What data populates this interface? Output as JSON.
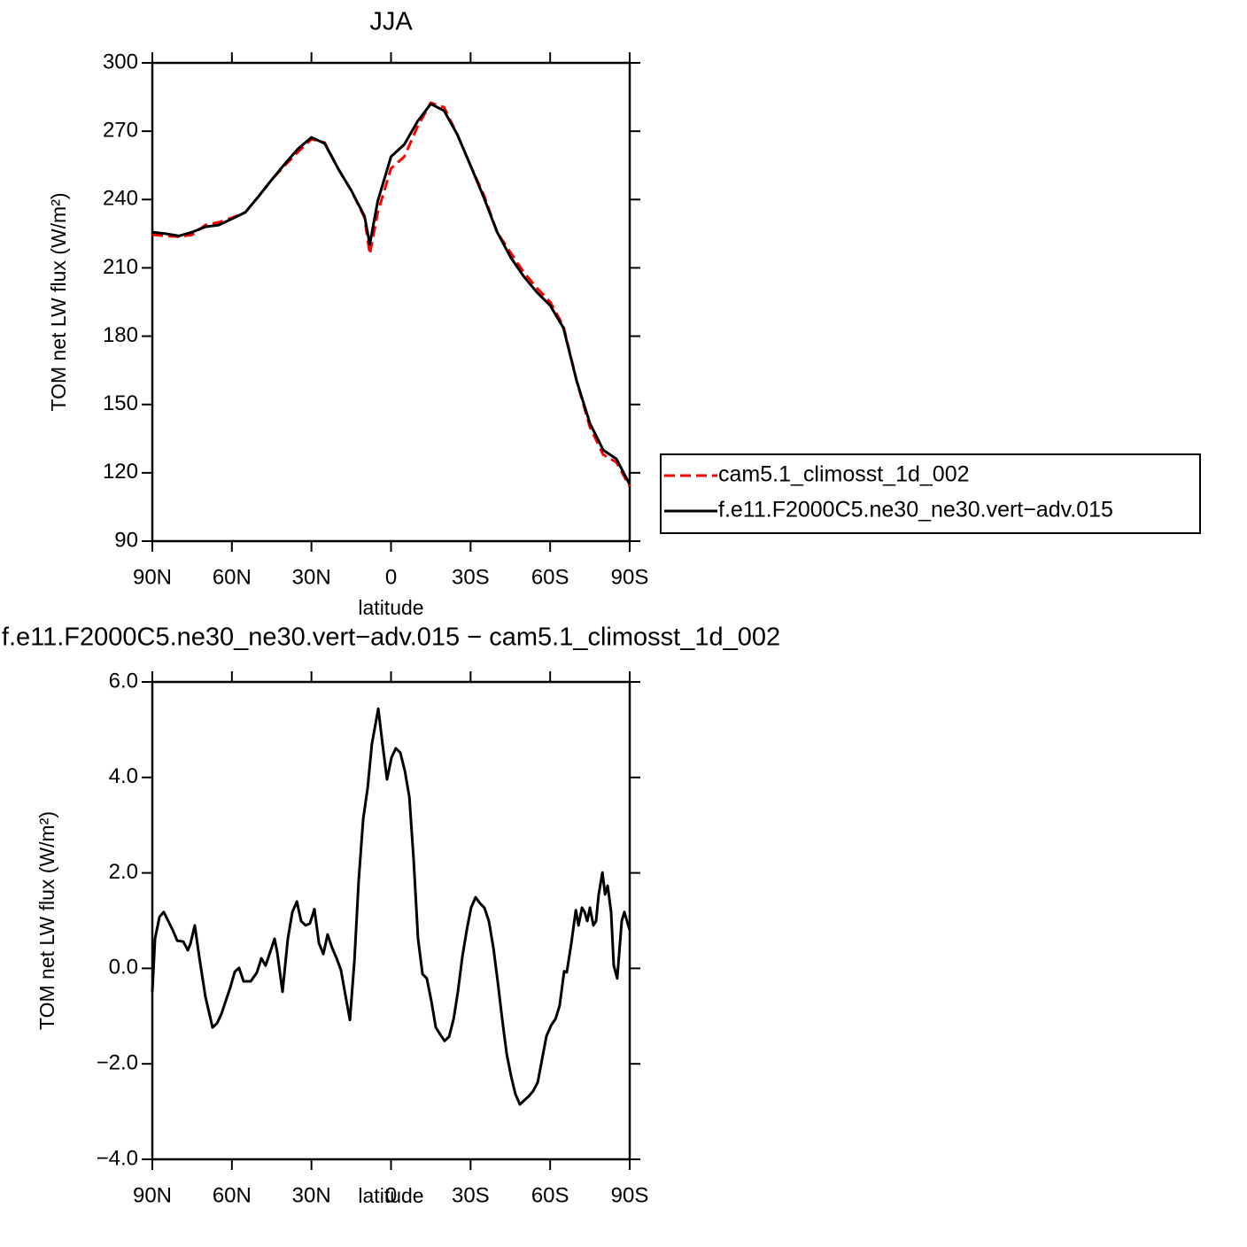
{
  "chart_data": [
    {
      "type": "line",
      "title": "JJA",
      "xlabel": "latitude",
      "ylabel": "TOM net LW flux (W/m²)",
      "x": [
        90,
        85,
        80,
        75,
        70,
        65,
        60,
        55,
        50,
        45,
        40,
        35,
        30,
        25,
        20,
        15,
        10,
        8,
        5,
        0,
        -5,
        -10,
        -15,
        -20,
        -25,
        -30,
        -35,
        -40,
        -45,
        -50,
        -55,
        -60,
        -65,
        -70,
        -75,
        -80,
        -85,
        -90
      ],
      "series": [
        {
          "name": "cam5.1_climosst_1d_002",
          "color": "#ff0000",
          "style": "dashed",
          "values": [
            224.5,
            224,
            223.7,
            224.5,
            228.8,
            230,
            232,
            234.3,
            241.3,
            248.7,
            255,
            261,
            266.5,
            265,
            253.7,
            244,
            232,
            216,
            234.3,
            253.7,
            258.8,
            272,
            282.5,
            280.5,
            268.5,
            254.9,
            242,
            225.7,
            216.8,
            208.2,
            201.2,
            195,
            184.5,
            160.4,
            140,
            128,
            124.6,
            114
          ]
        },
        {
          "name": "f.e11.F2000C5.ne30_ne30.vert−adv.015",
          "color": "#000000",
          "style": "solid",
          "values": [
            225.7,
            225,
            224,
            225.7,
            228,
            228.8,
            231.5,
            234.3,
            241.3,
            248.7,
            255.7,
            262.3,
            267.3,
            264.6,
            253.7,
            244,
            232.7,
            220.3,
            239.3,
            258.8,
            264.2,
            274.3,
            282,
            279,
            268.5,
            254.9,
            240.9,
            225.7,
            214.8,
            206.3,
            199.3,
            193.5,
            183.7,
            160.4,
            141.7,
            130,
            126.1,
            114.9
          ]
        }
      ],
      "xlim": [
        90,
        -90
      ],
      "xticks": [
        {
          "value": 90,
          "label": "90N"
        },
        {
          "value": 60,
          "label": "60N"
        },
        {
          "value": 30,
          "label": "30N"
        },
        0,
        {
          "value": -30,
          "label": "30S"
        },
        {
          "value": -60,
          "label": "60S"
        },
        {
          "value": -90,
          "label": "90S"
        }
      ],
      "ylim": [
        90,
        300
      ],
      "yticks": [
        90,
        120,
        150,
        180,
        210,
        240,
        270,
        300
      ],
      "legend": "outside-right"
    },
    {
      "type": "line",
      "title": "f.e11.F2000C5.ne30_ne30.vert−adv.015 − cam5.1_climosst_1d_002",
      "xlabel": "latitude",
      "ylabel": "TOM net LW flux (W/m²)",
      "x": [
        90,
        89,
        87.3,
        85.7,
        84,
        82.3,
        80.6,
        78.3,
        76.6,
        75.6,
        74,
        72.3,
        70,
        67.3,
        65.6,
        64,
        62.3,
        60.6,
        58.9,
        57.3,
        55.6,
        52.9,
        50.6,
        48.9,
        47.3,
        45.6,
        43.9,
        42.9,
        40.9,
        38.9,
        37.2,
        35.5,
        33.9,
        32.2,
        30.6,
        28.9,
        27.2,
        25.5,
        23.9,
        22.2,
        20.5,
        18.9,
        17.2,
        15.5,
        13.8,
        12.2,
        10.5,
        8.8,
        7.2,
        4.8,
        3.2,
        1.5,
        -0.2,
        -1.8,
        -3.5,
        -5.2,
        -6.9,
        -8.5,
        -10.2,
        -11.9,
        -13.5,
        -15.2,
        -16.9,
        -18.6,
        -20.2,
        -21.9,
        -23.6,
        -25.2,
        -26.9,
        -28.6,
        -30.2,
        -31.9,
        -33.6,
        -35.2,
        -36.9,
        -38.6,
        -40.3,
        -41.9,
        -43.6,
        -45.3,
        -46.9,
        -48.6,
        -50.3,
        -51.9,
        -53.6,
        -55.3,
        -57,
        -58.6,
        -60.3,
        -62,
        -63.6,
        -65.3,
        -66.3,
        -68,
        -69.7,
        -70.7,
        -72,
        -73,
        -74,
        -75,
        -76.3,
        -77.3,
        -78.3,
        -79.7,
        -80.7,
        -81.7,
        -83,
        -84,
        -85.3,
        -87,
        -88,
        -89,
        -90
      ],
      "values": [
        -0.49,
        0.62,
        1.08,
        1.18,
        0.99,
        0.8,
        0.58,
        0.56,
        0.38,
        0.52,
        0.9,
        0.24,
        -0.59,
        -1.24,
        -1.15,
        -0.96,
        -0.68,
        -0.4,
        -0.07,
        0.01,
        -0.27,
        -0.27,
        -0.09,
        0.21,
        0.06,
        0.34,
        0.62,
        0.34,
        -0.49,
        0.62,
        1.18,
        1.4,
        0.99,
        0.9,
        0.94,
        1.24,
        0.53,
        0.3,
        0.71,
        0.43,
        0.21,
        -0.03,
        -0.56,
        -1.08,
        0.17,
        1.84,
        3.13,
        3.78,
        4.7,
        5.44,
        4.7,
        3.96,
        4.42,
        4.61,
        4.52,
        4.14,
        3.59,
        2.29,
        0.62,
        -0.12,
        -0.21,
        -0.68,
        -1.24,
        -1.39,
        -1.52,
        -1.43,
        -1.06,
        -0.49,
        0.25,
        0.81,
        1.27,
        1.49,
        1.36,
        1.27,
        0.99,
        0.43,
        -0.31,
        -1.06,
        -1.79,
        -2.26,
        -2.63,
        -2.85,
        -2.76,
        -2.68,
        -2.57,
        -2.39,
        -1.89,
        -1.42,
        -1.2,
        -1.06,
        -0.78,
        -0.06,
        -0.08,
        0.53,
        1.22,
        0.9,
        1.27,
        1.18,
        0.99,
        1.27,
        0.9,
        0.99,
        1.55,
        2.01,
        1.55,
        1.73,
        1.18,
        0.06,
        -0.21,
        0.99,
        1.18,
        0.99,
        0.8
      ],
      "color": "#000000",
      "xlim": [
        90,
        -90
      ],
      "xticks": [
        {
          "value": 90,
          "label": "90N"
        },
        {
          "value": 60,
          "label": "60N"
        },
        {
          "value": 30,
          "label": "30N"
        },
        0,
        {
          "value": -30,
          "label": "30S"
        },
        {
          "value": -60,
          "label": "60S"
        },
        {
          "value": -90,
          "label": "90S"
        }
      ],
      "ylim": [
        -4,
        6
      ],
      "yticks": [
        {
          "value": -4,
          "label": "−4.0"
        },
        {
          "value": -2,
          "label": "−2.0"
        },
        {
          "value": 0,
          "label": "0.0"
        },
        {
          "value": 2,
          "label": "2.0"
        },
        {
          "value": 4,
          "label": "4.0"
        },
        {
          "value": 6,
          "label": "6.0"
        }
      ]
    }
  ]
}
